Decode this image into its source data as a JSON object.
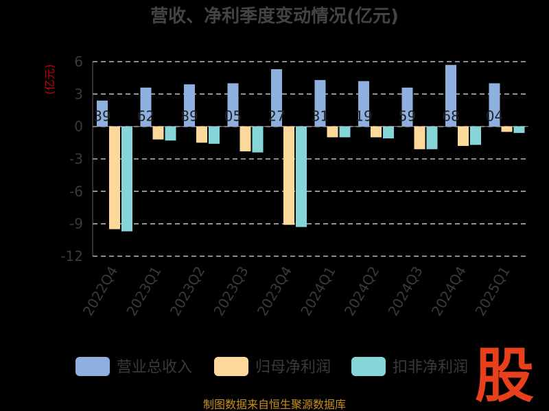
{
  "chart_data": {
    "type": "bar",
    "title": "营收、净利季度变动情况(亿元)",
    "ylabel": "(亿元)",
    "ylim": [
      -12,
      6
    ],
    "yticks": [
      6,
      3,
      0,
      -3,
      -6,
      -9,
      -12
    ],
    "grid": true,
    "legend_position": "bottom",
    "categories": [
      "2022Q4",
      "2023Q1",
      "2023Q2",
      "2023Q3",
      "2023Q4",
      "2024Q1",
      "2024Q2",
      "2024Q3",
      "2024Q4",
      "2025Q1"
    ],
    "series": [
      {
        "name": "营业总收入",
        "color": "#8eb0de",
        "values": [
          2.4,
          3.6,
          3.9,
          4.0,
          5.3,
          4.3,
          4.2,
          3.6,
          5.7,
          4.0
        ],
        "labels": [
          "39",
          "62",
          "89",
          "05",
          "27",
          "31",
          "19",
          "59",
          "68",
          "04"
        ]
      },
      {
        "name": "归母净利润",
        "color": "#fcd99a",
        "values": [
          -9.5,
          -1.2,
          -1.5,
          -2.3,
          -9.1,
          -1.0,
          -1.0,
          -2.1,
          -1.8,
          -0.5
        ]
      },
      {
        "name": "扣非净利润",
        "color": "#86d5d8",
        "values": [
          -9.7,
          -1.3,
          -1.6,
          -2.4,
          -9.3,
          -1.0,
          -1.1,
          -2.1,
          -1.7,
          -0.6
        ]
      }
    ]
  },
  "footer": "制图数据来自恒生聚源数据库",
  "stamp": "股"
}
